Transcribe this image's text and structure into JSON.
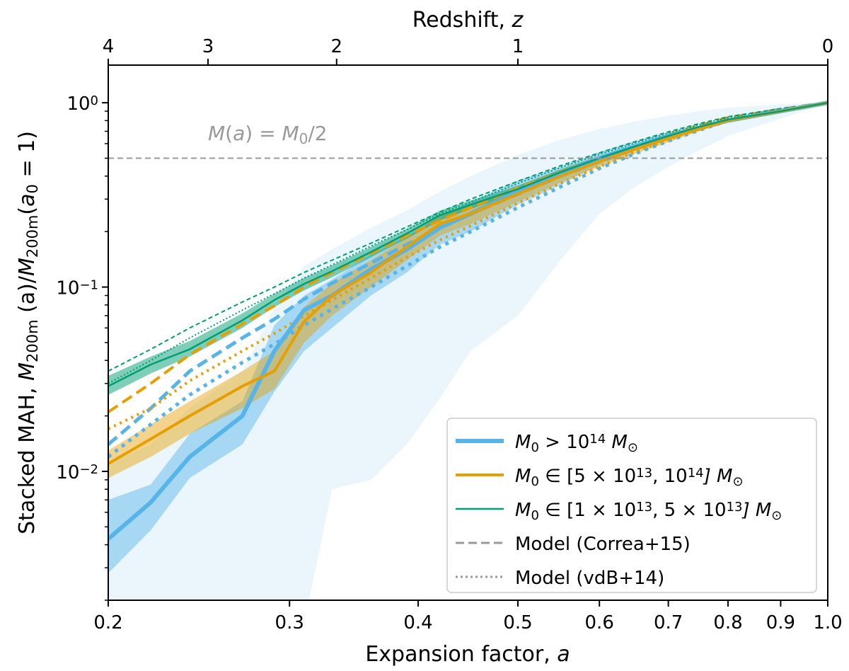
{
  "chart_data": {
    "type": "line",
    "title": "",
    "xlabel": "Expansion factor, a",
    "ylabel_parts": [
      "Stacked MAH, ",
      "M",
      "200m",
      " (a)/",
      "M",
      "200m",
      "(",
      "a",
      "0",
      " = 1)"
    ],
    "top_xlabel_parts": [
      "Redshift, ",
      "z"
    ],
    "x_scale": "log",
    "y_scale": "log",
    "xlim": [
      0.2,
      1.0
    ],
    "ylim": [
      0.002,
      1.6
    ],
    "x_ticks": [
      {
        "value": 0.2,
        "label": "0.2"
      },
      {
        "value": 0.3,
        "label": "0.3"
      },
      {
        "value": 0.4,
        "label": "0.4"
      },
      {
        "value": 0.5,
        "label": "0.5"
      },
      {
        "value": 0.6,
        "label": "0.6"
      },
      {
        "value": 0.7,
        "label": "0.7"
      },
      {
        "value": 0.8,
        "label": "0.8"
      },
      {
        "value": 0.9,
        "label": "0.9"
      },
      {
        "value": 1.0,
        "label": "1.0"
      }
    ],
    "top_ticks": [
      {
        "z": 4,
        "label": "4"
      },
      {
        "z": 3,
        "label": "3"
      },
      {
        "z": 2,
        "label": "2"
      },
      {
        "z": 1,
        "label": "1"
      },
      {
        "z": 0,
        "label": "0"
      }
    ],
    "y_ticks": [
      {
        "value": 1,
        "base": "10",
        "exp": "0"
      },
      {
        "value": 0.1,
        "base": "10",
        "exp": "−1"
      },
      {
        "value": 0.01,
        "base": "10",
        "exp": "−2"
      }
    ],
    "reference_line": {
      "value": 0.5,
      "label_parts": [
        "M",
        "(",
        "a",
        ") = ",
        "M",
        "0",
        "/2"
      ],
      "color": "#999999"
    },
    "a": [
      0.2,
      0.22,
      0.24,
      0.27,
      0.29,
      0.31,
      0.33,
      0.36,
      0.39,
      0.42,
      0.45,
      0.5,
      0.55,
      0.6,
      0.65,
      0.7,
      0.75,
      0.8,
      0.9,
      1.0
    ],
    "series": [
      {
        "name": "M0 > 1e14",
        "color": "#56B4E9",
        "line_width": 6,
        "median": [
          0.0043,
          0.0068,
          0.012,
          0.02,
          0.045,
          0.075,
          0.09,
          0.125,
          0.16,
          0.21,
          0.25,
          0.33,
          0.41,
          0.5,
          0.58,
          0.66,
          0.73,
          0.8,
          0.9,
          1.0
        ],
        "band_lo": [
          0.0028,
          0.0048,
          0.0092,
          0.014,
          0.027,
          0.045,
          0.06,
          0.09,
          0.12,
          0.17,
          0.2,
          0.28,
          0.36,
          0.46,
          0.55,
          0.63,
          0.71,
          0.79,
          0.9,
          1.0
        ],
        "band_hi": [
          0.007,
          0.0085,
          0.016,
          0.024,
          0.062,
          0.09,
          0.11,
          0.15,
          0.19,
          0.24,
          0.29,
          0.38,
          0.45,
          0.54,
          0.62,
          0.69,
          0.75,
          0.82,
          0.91,
          1.0
        ],
        "outer_lo": [
          null,
          null,
          null,
          null,
          null,
          0.0015,
          0.008,
          0.009,
          0.014,
          0.025,
          0.045,
          0.07,
          0.14,
          0.25,
          0.35,
          0.45,
          0.55,
          0.66,
          0.82,
          1.0
        ],
        "outer_hi": [
          0.011,
          0.014,
          0.022,
          0.035,
          0.077,
          0.13,
          0.16,
          0.21,
          0.26,
          0.33,
          0.4,
          0.52,
          0.63,
          0.72,
          0.79,
          0.85,
          0.9,
          0.94,
          0.98,
          1.0
        ],
        "model_correa": [
          0.014,
          0.022,
          0.035,
          0.053,
          0.067,
          0.086,
          0.105,
          0.135,
          0.17,
          0.21,
          0.25,
          0.32,
          0.4,
          0.48,
          0.56,
          0.65,
          0.74,
          0.82,
          0.92,
          1.0
        ],
        "model_vdb": [
          0.012,
          0.018,
          0.026,
          0.039,
          0.049,
          0.062,
          0.076,
          0.1,
          0.13,
          0.165,
          0.2,
          0.27,
          0.35,
          0.44,
          0.53,
          0.62,
          0.71,
          0.8,
          0.91,
          1.0
        ]
      },
      {
        "name": "M0 in [5e13, 1e14]",
        "color": "#E69F00",
        "line_width": 4,
        "median": [
          0.011,
          0.015,
          0.02,
          0.029,
          0.035,
          0.065,
          0.09,
          0.12,
          0.165,
          0.22,
          0.25,
          0.32,
          0.4,
          0.48,
          0.56,
          0.64,
          0.72,
          0.8,
          0.9,
          1.0
        ],
        "band_lo": [
          0.0092,
          0.012,
          0.016,
          0.022,
          0.028,
          0.05,
          0.07,
          0.1,
          0.14,
          0.19,
          0.22,
          0.29,
          0.37,
          0.45,
          0.53,
          0.61,
          0.7,
          0.78,
          0.89,
          1.0
        ],
        "band_hi": [
          0.013,
          0.018,
          0.024,
          0.035,
          0.045,
          0.078,
          0.105,
          0.14,
          0.185,
          0.245,
          0.28,
          0.35,
          0.43,
          0.51,
          0.59,
          0.67,
          0.75,
          0.82,
          0.91,
          1.0
        ],
        "model_correa": [
          0.021,
          0.03,
          0.043,
          0.063,
          0.079,
          0.1,
          0.12,
          0.152,
          0.19,
          0.23,
          0.27,
          0.345,
          0.42,
          0.5,
          0.58,
          0.67,
          0.75,
          0.83,
          0.92,
          1.0
        ],
        "model_vdb": [
          0.017,
          0.022,
          0.031,
          0.045,
          0.056,
          0.07,
          0.085,
          0.112,
          0.145,
          0.18,
          0.215,
          0.285,
          0.365,
          0.45,
          0.54,
          0.63,
          0.72,
          0.8,
          0.91,
          1.0
        ]
      },
      {
        "name": "M0 in [1e13, 5e13]",
        "color": "#009E73",
        "line_width": 2.5,
        "median": [
          0.029,
          0.038,
          0.046,
          0.066,
          0.085,
          0.104,
          0.122,
          0.155,
          0.195,
          0.245,
          0.28,
          0.34,
          0.42,
          0.5,
          0.58,
          0.66,
          0.74,
          0.81,
          0.9,
          1.0
        ],
        "band_lo": [
          0.026,
          0.034,
          0.042,
          0.06,
          0.078,
          0.096,
          0.113,
          0.145,
          0.183,
          0.23,
          0.265,
          0.325,
          0.405,
          0.485,
          0.565,
          0.645,
          0.73,
          0.8,
          0.9,
          1.0
        ],
        "band_hi": [
          0.033,
          0.042,
          0.051,
          0.072,
          0.092,
          0.112,
          0.131,
          0.165,
          0.207,
          0.26,
          0.295,
          0.355,
          0.435,
          0.515,
          0.595,
          0.675,
          0.75,
          0.82,
          0.91,
          1.0
        ],
        "model_correa": [
          0.035,
          0.046,
          0.06,
          0.083,
          0.1,
          0.12,
          0.14,
          0.173,
          0.212,
          0.255,
          0.3,
          0.375,
          0.455,
          0.535,
          0.615,
          0.695,
          0.77,
          0.84,
          0.93,
          1.0
        ],
        "model_vdb": [
          0.03,
          0.04,
          0.053,
          0.075,
          0.092,
          0.112,
          0.132,
          0.167,
          0.205,
          0.25,
          0.29,
          0.365,
          0.445,
          0.525,
          0.605,
          0.685,
          0.76,
          0.83,
          0.92,
          1.0
        ]
      }
    ],
    "legend": {
      "placement": "bottom-right",
      "entries": [
        {
          "style": "thick",
          "color": "#56B4E9",
          "parts": [
            "M",
            "0",
            " > 10",
            "14",
            " M",
            "⊙"
          ]
        },
        {
          "style": "medium",
          "color": "#E69F00",
          "parts": [
            "M",
            "0",
            " ∈ [5 × 10",
            "13",
            ", 10",
            "14",
            "] M",
            "⊙"
          ]
        },
        {
          "style": "thin",
          "color": "#009E73",
          "parts": [
            "M",
            "0",
            " ∈ [1 × 10",
            "13",
            ", 5 × 10",
            "13",
            "] M",
            "⊙"
          ]
        },
        {
          "style": "dashed",
          "color": "#999999",
          "parts": [
            "Model (Correa+15)"
          ]
        },
        {
          "style": "dotted",
          "color": "#999999",
          "parts": [
            "Model (vdB+14)"
          ]
        }
      ]
    }
  }
}
